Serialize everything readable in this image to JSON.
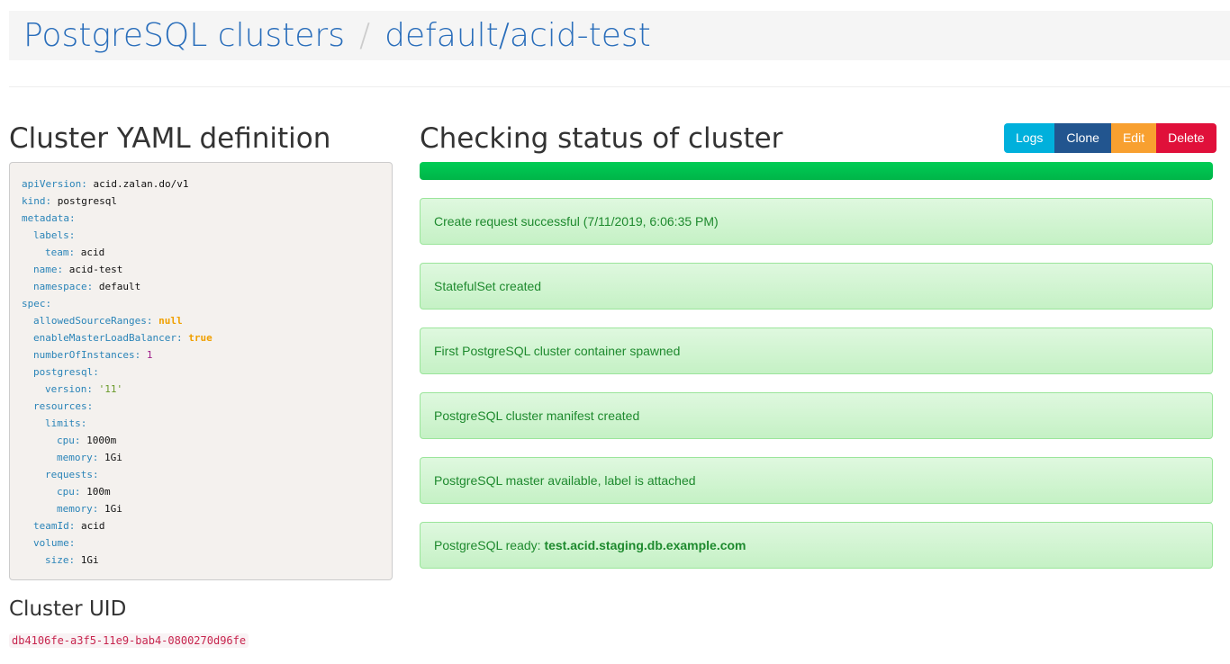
{
  "breadcrumb": {
    "root": "PostgreSQL clusters",
    "separator": "/",
    "current": "default/acid-test"
  },
  "yaml_section": {
    "title": "Cluster YAML definition",
    "lines": [
      {
        "indent": 0,
        "key": "apiVersion",
        "value": "acid.zalan.do/v1",
        "type": "str"
      },
      {
        "indent": 0,
        "key": "kind",
        "value": "postgresql",
        "type": "str"
      },
      {
        "indent": 0,
        "key": "metadata",
        "value": "",
        "type": "map"
      },
      {
        "indent": 1,
        "key": "labels",
        "value": "",
        "type": "map"
      },
      {
        "indent": 2,
        "key": "team",
        "value": "acid",
        "type": "str"
      },
      {
        "indent": 1,
        "key": "name",
        "value": "acid-test",
        "type": "str"
      },
      {
        "indent": 1,
        "key": "namespace",
        "value": "default",
        "type": "str"
      },
      {
        "indent": 0,
        "key": "spec",
        "value": "",
        "type": "map"
      },
      {
        "indent": 1,
        "key": "allowedSourceRanges",
        "value": "null",
        "type": "bool"
      },
      {
        "indent": 1,
        "key": "enableMasterLoadBalancer",
        "value": "true",
        "type": "bool"
      },
      {
        "indent": 1,
        "key": "numberOfInstances",
        "value": "1",
        "type": "num"
      },
      {
        "indent": 1,
        "key": "postgresql",
        "value": "",
        "type": "map"
      },
      {
        "indent": 2,
        "key": "version",
        "value": "'11'",
        "type": "quoted"
      },
      {
        "indent": 1,
        "key": "resources",
        "value": "",
        "type": "map"
      },
      {
        "indent": 2,
        "key": "limits",
        "value": "",
        "type": "map"
      },
      {
        "indent": 3,
        "key": "cpu",
        "value": "1000m",
        "type": "str"
      },
      {
        "indent": 3,
        "key": "memory",
        "value": "1Gi",
        "type": "str"
      },
      {
        "indent": 2,
        "key": "requests",
        "value": "",
        "type": "map"
      },
      {
        "indent": 3,
        "key": "cpu",
        "value": "100m",
        "type": "str"
      },
      {
        "indent": 3,
        "key": "memory",
        "value": "1Gi",
        "type": "str"
      },
      {
        "indent": 1,
        "key": "teamId",
        "value": "acid",
        "type": "str"
      },
      {
        "indent": 1,
        "key": "volume",
        "value": "",
        "type": "map"
      },
      {
        "indent": 2,
        "key": "size",
        "value": "1Gi",
        "type": "str"
      }
    ]
  },
  "uid_section": {
    "title": "Cluster UID",
    "uid": "db4106fe-a3f5-11e9-bab4-0800270d96fe"
  },
  "status": {
    "title": "Checking status of cluster",
    "progress_percent": 100,
    "buttons": [
      {
        "label": "Logs",
        "color": "#00b0dc"
      },
      {
        "label": "Clone",
        "color": "#22558f"
      },
      {
        "label": "Edit",
        "color": "#f8a030"
      },
      {
        "label": "Delete",
        "color": "#e0103a"
      }
    ],
    "alerts": [
      {
        "text": "Create request successful (7/11/2019, 6:06:35 PM)",
        "bold": ""
      },
      {
        "text": "StatefulSet created",
        "bold": ""
      },
      {
        "text": "First PostgreSQL cluster container spawned",
        "bold": ""
      },
      {
        "text": "PostgreSQL cluster manifest created",
        "bold": ""
      },
      {
        "text": "PostgreSQL master available, label is attached",
        "bold": ""
      },
      {
        "text": "PostgreSQL ready: ",
        "bold": "test.acid.staging.db.example.com"
      }
    ]
  }
}
